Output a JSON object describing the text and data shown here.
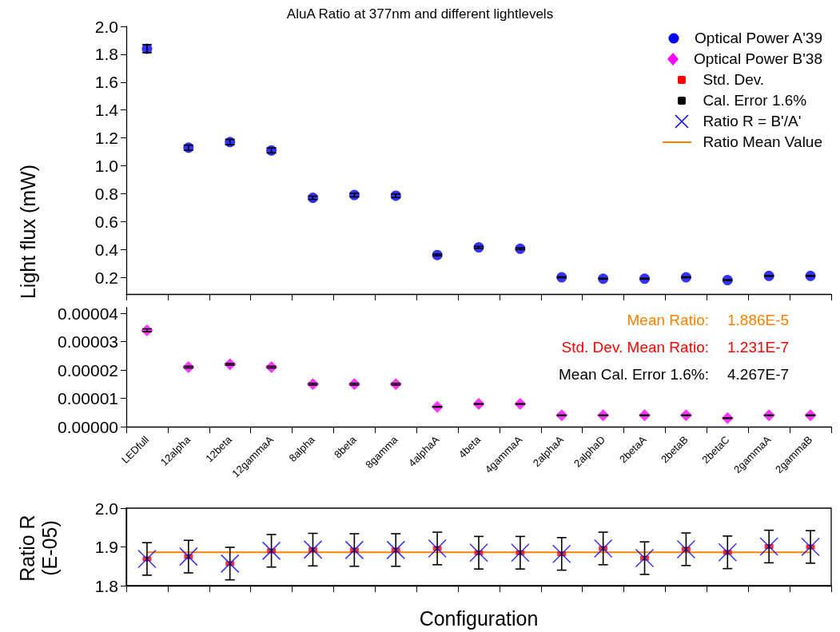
{
  "chart_data": [
    {
      "type": "scatter",
      "title": "AluA Ratio at 377nm and different lightlevels",
      "ylabel": "Light flux (mW)",
      "categories": [
        null,
        null,
        null,
        null,
        null,
        null,
        null,
        null,
        null,
        null,
        null,
        null,
        null,
        null,
        null,
        null,
        null
      ],
      "ylim": [
        0.08,
        2.0
      ],
      "yticks": [
        0.2,
        0.4,
        0.6,
        0.8,
        {
          "value": 1.0,
          "label": "1.0"
        },
        1.2,
        1.4,
        1.6,
        1.8,
        {
          "value": 2.0,
          "label": "2.0"
        }
      ],
      "tick_labels": "y",
      "legend": "top right",
      "grid": false,
      "series": [
        {
          "name": "Optical Power A'39",
          "color": "#0000ff",
          "marker": "circle",
          "values": [
            1.84,
            1.13,
            1.17,
            1.11,
            0.77,
            0.79,
            0.785,
            0.36,
            0.415,
            0.405,
            0.2,
            0.19,
            0.19,
            0.2,
            0.18,
            0.21,
            0.21
          ],
          "errors": [
            0.029,
            0.018,
            0.019,
            0.018,
            0.012,
            0.013,
            0.013,
            0.006,
            0.007,
            0.006,
            0.003,
            0.003,
            0.003,
            0.003,
            0.003,
            0.003,
            0.003
          ]
        }
      ]
    },
    {
      "type": "scatter",
      "categories": [
        "LEDfull",
        "12alpha",
        "12beta",
        "12gammaA",
        "8alpha",
        "8beta",
        "8gamma",
        "4alphaA",
        "4beta",
        "4gammaA",
        "2alphaA",
        "2alphaD",
        "2betaA",
        "2betaB",
        "2betaC",
        "2gammaA",
        "2gammaB"
      ],
      "ylim": [
        0,
        4.2e-05
      ],
      "yticks": [
        {
          "value": 0,
          "label": "0.00000"
        },
        {
          "value": 1e-05,
          "label": "0.00001"
        },
        {
          "value": 2e-05,
          "label": "0.00002"
        },
        {
          "value": 3e-05,
          "label": "0.00003"
        },
        {
          "value": 4e-05,
          "label": "0.00004"
        }
      ],
      "legend": "top right",
      "grid": false,
      "annotations": [
        "Mean Ratio:",
        "1.886E-5",
        "Std. Dev. Mean Ratio:",
        "1.231E-7",
        "Mean Cal. Error 1.6%:",
        "4.267E-7"
      ],
      "series": [
        {
          "name": "Optical Power B'38",
          "color": "#ff00ff",
          "marker": "diamond",
          "values": [
            3.4e-05,
            2.1e-05,
            2.2e-05,
            2.1e-05,
            1.5e-05,
            1.5e-05,
            1.5e-05,
            7e-06,
            8e-06,
            8e-06,
            4e-06,
            4e-06,
            4e-06,
            4e-06,
            3e-06,
            4e-06,
            4e-06
          ],
          "errors": [
            5e-07,
            3e-07,
            3e-07,
            3e-07,
            3e-07,
            3e-07,
            3e-07,
            1e-07,
            1e-07,
            1e-07,
            1e-07,
            1e-07,
            1e-07,
            1e-07,
            1e-07,
            1e-07,
            1e-07
          ]
        }
      ]
    },
    {
      "type": "scatter",
      "ylabel": "Ratio R\n(E-05)",
      "xlabel": "Configuration",
      "categories": [
        null,
        null,
        null,
        null,
        null,
        null,
        null,
        null,
        null,
        null,
        null,
        null,
        null,
        null,
        null,
        null,
        null
      ],
      "ylim": [
        1.8,
        2.0
      ],
      "yticks": [
        1.8,
        1.9,
        {
          "value": 2.0,
          "label": "2.0"
        }
      ],
      "tick_labels": "y",
      "legend": "top right",
      "grid": false,
      "annotations": [
        "Cal. Error 1.6%"
      ],
      "series": [
        {
          "name": "Std. Dev.",
          "color": "#ff0000",
          "marker": "square",
          "values": [
            1.869,
            1.875,
            1.857,
            1.89,
            1.893,
            1.892,
            1.892,
            1.896,
            1.885,
            1.885,
            1.882,
            1.896,
            1.871,
            1.894,
            1.886,
            1.901,
            1.9
          ]
        },
        {
          "name": "Ratio R = B'/A'",
          "color": "#0000ff",
          "marker": "cross",
          "values": [
            1.869,
            1.875,
            1.857,
            1.89,
            1.893,
            1.892,
            1.892,
            1.896,
            1.885,
            1.885,
            1.882,
            1.896,
            1.871,
            1.894,
            1.886,
            1.901,
            1.9
          ],
          "errors": [
            0.042,
            0.042,
            0.042,
            0.042,
            0.042,
            0.042,
            0.042,
            0.042,
            0.042,
            0.042,
            0.042,
            0.042,
            0.042,
            0.042,
            0.042,
            0.042,
            0.042
          ]
        },
        {
          "name": "Ratio Mean Value",
          "type": "line",
          "color": "#ff8000",
          "marker": "none",
          "values": [
            1.886,
            1.886,
            1.886,
            1.886,
            1.886,
            1.886,
            1.886,
            1.886,
            1.886,
            1.886,
            1.886,
            1.886,
            1.886,
            1.886,
            1.886,
            1.886,
            1.886
          ]
        }
      ]
    }
  ]
}
